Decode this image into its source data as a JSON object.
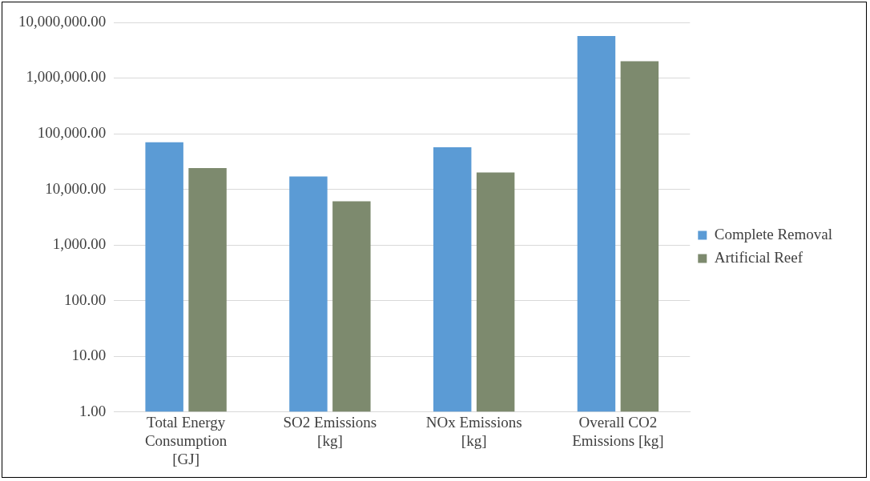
{
  "chart_data": {
    "type": "bar",
    "categories": [
      "Total Energy Consumption [GJ]",
      "SO2 Emissions [kg]",
      "NOx Emissions [kg]",
      "Overall CO2 Emissions [kg]"
    ],
    "series": [
      {
        "name": "Complete Removal",
        "color": "#5b9bd5",
        "values": [
          70000,
          17000,
          57000,
          5700000
        ]
      },
      {
        "name": "Artificial Reef",
        "color": "#7d8a6e",
        "values": [
          24000,
          6100,
          20000,
          2000000
        ]
      }
    ],
    "log": true,
    "ylim": [
      1,
      10000000
    ],
    "yticks": [
      {
        "value": 1,
        "label": "1.00"
      },
      {
        "value": 10,
        "label": "10.00"
      },
      {
        "value": 100,
        "label": "100.00"
      },
      {
        "value": 1000,
        "label": "1,000.00"
      },
      {
        "value": 10000,
        "label": "10,000.00"
      },
      {
        "value": 100000,
        "label": "100,000.00"
      },
      {
        "value": 1000000,
        "label": "1,000,000.00"
      },
      {
        "value": 10000000,
        "label": "10,000,000.00"
      }
    ],
    "grid": "y",
    "legend": "right"
  }
}
